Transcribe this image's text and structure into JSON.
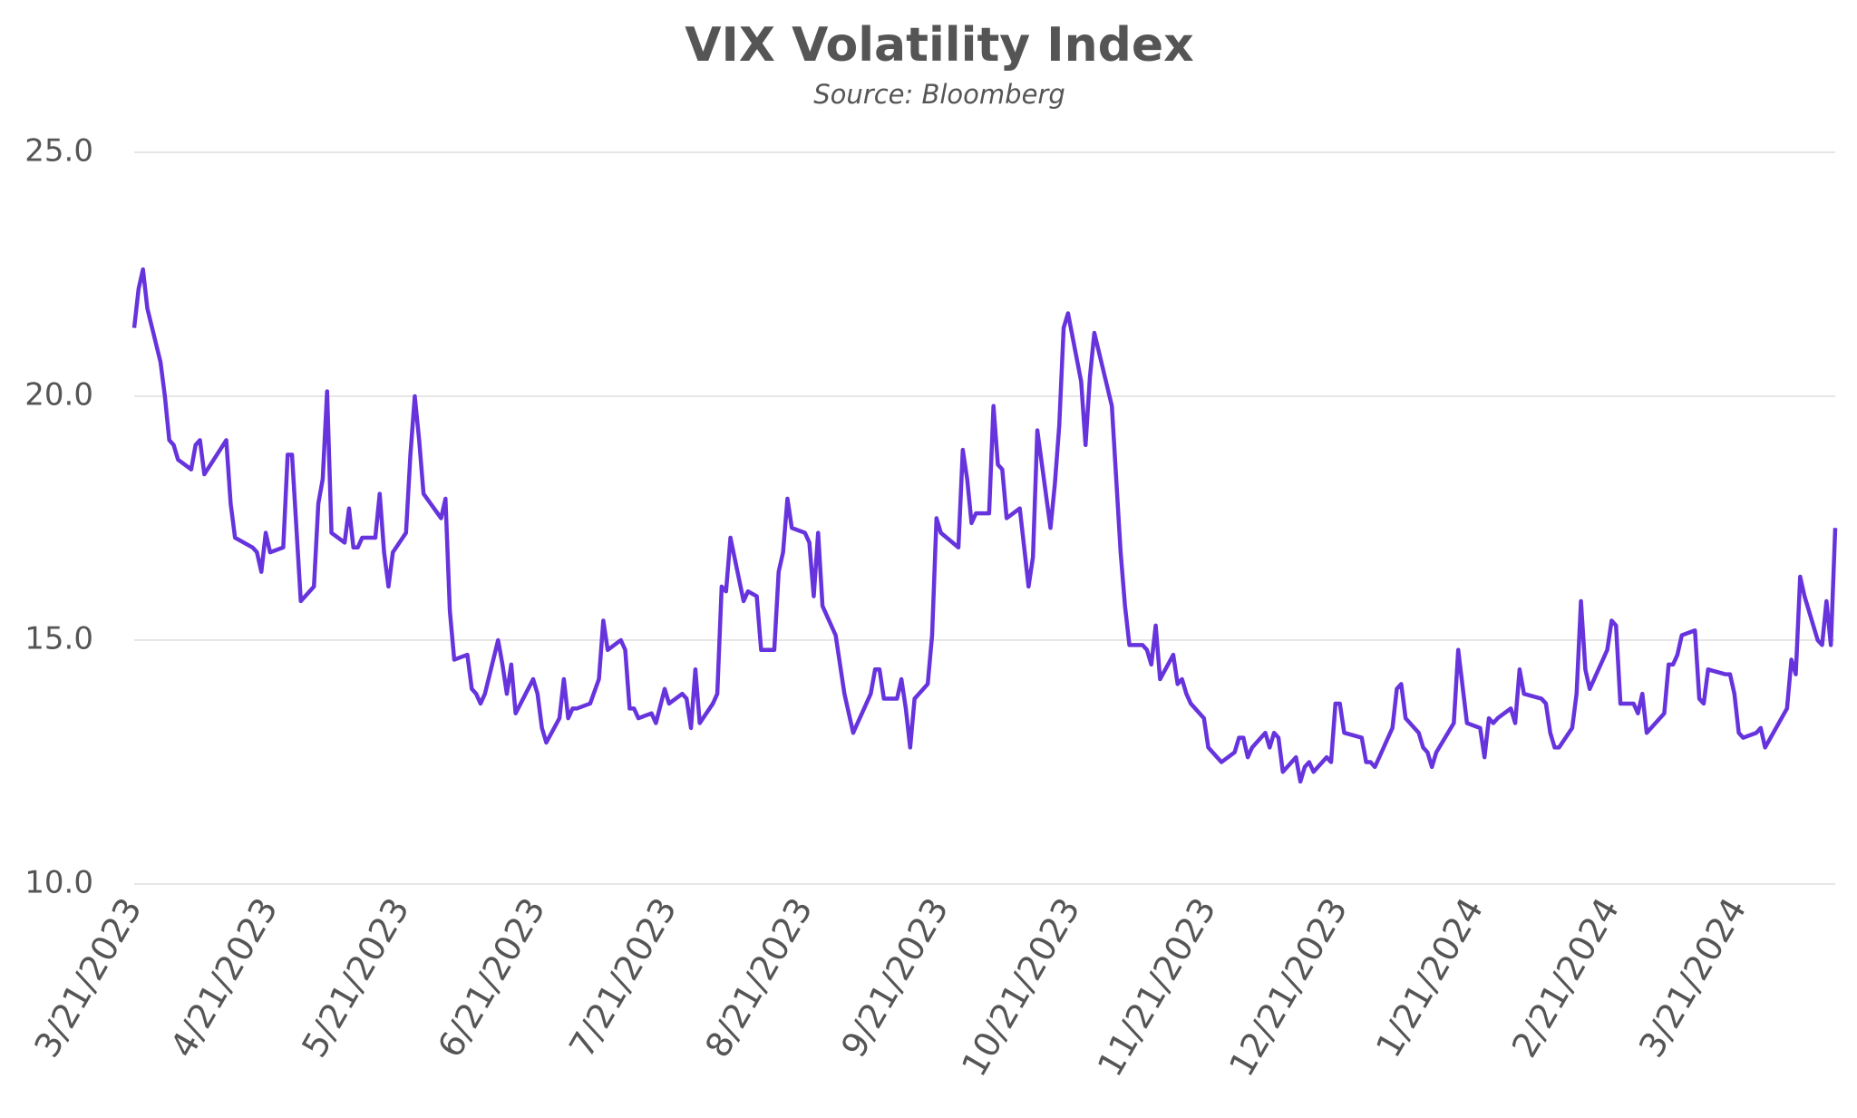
{
  "chart_data": {
    "type": "line",
    "title": "VIX Volatility Index",
    "subtitle": "Source: Bloomberg",
    "x": [
      "3/21/2023",
      "3/22/2023",
      "3/23/2023",
      "3/24/2023",
      "3/27/2023",
      "3/28/2023",
      "3/29/2023",
      "3/30/2023",
      "3/31/2023",
      "4/3/2023",
      "4/4/2023",
      "4/5/2023",
      "4/6/2023",
      "4/11/2023",
      "4/12/2023",
      "4/13/2023",
      "4/17/2023",
      "4/18/2023",
      "4/19/2023",
      "4/20/2023",
      "4/21/2023",
      "4/24/2023",
      "4/25/2023",
      "4/26/2023",
      "4/28/2023",
      "5/1/2023",
      "5/2/2023",
      "5/3/2023",
      "5/4/2023",
      "5/5/2023",
      "5/8/2023",
      "5/9/2023",
      "5/10/2023",
      "5/11/2023",
      "5/12/2023",
      "5/15/2023",
      "5/16/2023",
      "5/17/2023",
      "5/18/2023",
      "5/19/2023",
      "5/22/2023",
      "5/23/2023",
      "5/24/2023",
      "5/25/2023",
      "5/26/2023",
      "5/30/2023",
      "5/31/2023",
      "6/1/2023",
      "6/2/2023",
      "6/5/2023",
      "6/6/2023",
      "6/7/2023",
      "6/8/2023",
      "6/9/2023",
      "6/12/2023",
      "6/13/2023",
      "6/14/2023",
      "6/15/2023",
      "6/16/2023",
      "6/20/2023",
      "6/21/2023",
      "6/22/2023",
      "6/23/2023",
      "6/26/2023",
      "6/27/2023",
      "6/28/2023",
      "6/29/2023",
      "6/30/2023",
      "7/3/2023",
      "7/5/2023",
      "7/6/2023",
      "7/7/2023",
      "7/10/2023",
      "7/11/2023",
      "7/12/2023",
      "7/13/2023",
      "7/14/2023",
      "7/17/2023",
      "7/18/2023",
      "7/20/2023",
      "7/21/2023",
      "7/24/2023",
      "7/25/2023",
      "7/26/2023",
      "7/27/2023",
      "7/28/2023",
      "7/31/2023",
      "8/1/2023",
      "8/2/2023",
      "8/3/2023",
      "8/4/2023",
      "8/7/2023",
      "8/8/2023",
      "8/10/2023",
      "8/11/2023",
      "8/14/2023",
      "8/15/2023",
      "8/16/2023",
      "8/17/2023",
      "8/18/2023",
      "8/21/2023",
      "8/22/2023",
      "8/23/2023",
      "8/24/2023",
      "8/25/2023",
      "8/28/2023",
      "8/30/2023",
      "9/1/2023",
      "9/5/2023",
      "9/6/2023",
      "9/7/2023",
      "9/8/2023",
      "9/11/2023",
      "9/12/2023",
      "9/13/2023",
      "9/14/2023",
      "9/15/2023",
      "9/18/2023",
      "9/19/2023",
      "9/20/2023",
      "9/21/2023",
      "9/25/2023",
      "9/26/2023",
      "9/27/2023",
      "9/28/2023",
      "9/29/2023",
      "10/2/2023",
      "10/3/2023",
      "10/4/2023",
      "10/5/2023",
      "10/6/2023",
      "10/9/2023",
      "10/10/2023",
      "10/11/2023",
      "10/12/2023",
      "10/13/2023",
      "10/16/2023",
      "10/17/2023",
      "10/18/2023",
      "10/19/2023",
      "10/20/2023",
      "10/23/2023",
      "10/24/2023",
      "10/25/2023",
      "10/26/2023",
      "10/30/2023",
      "10/31/2023",
      "11/1/2023",
      "11/2/2023",
      "11/3/2023",
      "11/6/2023",
      "11/7/2023",
      "11/8/2023",
      "11/9/2023",
      "11/10/2023",
      "11/13/2023",
      "11/14/2023",
      "11/15/2023",
      "11/16/2023",
      "11/17/2023",
      "11/20/2023",
      "11/21/2023",
      "11/22/2023",
      "11/24/2023",
      "11/27/2023",
      "11/28/2023",
      "11/29/2023",
      "11/30/2023",
      "12/1/2023",
      "12/4/2023",
      "12/5/2023",
      "12/6/2023",
      "12/7/2023",
      "12/8/2023",
      "12/11/2023",
      "12/12/2023",
      "12/13/2023",
      "12/14/2023",
      "12/15/2023",
      "12/18/2023",
      "12/19/2023",
      "12/20/2023",
      "12/21/2023",
      "12/22/2023",
      "12/26/2023",
      "12/27/2023",
      "12/28/2023",
      "12/29/2023",
      "1/2/2024",
      "1/3/2024",
      "1/4/2024",
      "1/5/2024",
      "1/8/2024",
      "1/9/2024",
      "1/10/2024",
      "1/11/2024",
      "1/12/2024",
      "1/16/2024",
      "1/17/2024",
      "1/19/2024",
      "1/22/2024",
      "1/23/2024",
      "1/24/2024",
      "1/25/2024",
      "1/26/2024",
      "1/29/2024",
      "1/30/2024",
      "1/31/2024",
      "2/1/2024",
      "2/5/2024",
      "2/6/2024",
      "2/7/2024",
      "2/8/2024",
      "2/9/2024",
      "2/12/2024",
      "2/13/2024",
      "2/14/2024",
      "2/15/2024",
      "2/16/2024",
      "2/20/2024",
      "2/21/2024",
      "2/22/2024",
      "2/23/2024",
      "2/26/2024",
      "2/27/2024",
      "2/28/2024",
      "2/29/2024",
      "3/4/2024",
      "3/5/2024",
      "3/6/2024",
      "3/7/2024",
      "3/8/2024",
      "3/11/2024",
      "3/12/2024",
      "3/13/2024",
      "3/14/2024",
      "3/18/2024",
      "3/19/2024",
      "3/20/2024",
      "3/21/2024",
      "3/22/2024",
      "3/25/2024",
      "3/26/2024",
      "3/27/2024",
      "4/1/2024",
      "4/2/2024",
      "4/3/2024",
      "4/4/2024",
      "4/5/2024",
      "4/8/2024",
      "4/9/2024",
      "4/10/2024",
      "4/11/2024",
      "4/12/2024"
    ],
    "series": [
      {
        "color": "#6633dd",
        "values": [
          21.4,
          22.2,
          22.6,
          21.8,
          20.7,
          20.0,
          19.1,
          19.0,
          18.7,
          18.5,
          19.0,
          19.1,
          18.4,
          19.1,
          17.8,
          17.1,
          16.9,
          16.8,
          16.4,
          17.2,
          16.8,
          16.9,
          18.8,
          18.8,
          15.8,
          16.1,
          17.8,
          18.3,
          20.1,
          17.2,
          17.0,
          17.7,
          16.9,
          16.9,
          17.1,
          17.1,
          18.0,
          16.8,
          16.1,
          16.8,
          17.2,
          18.8,
          20.0,
          19.1,
          18.0,
          17.5,
          17.9,
          15.6,
          14.6,
          14.7,
          14.0,
          13.9,
          13.7,
          13.9,
          15.0,
          14.5,
          13.9,
          14.5,
          13.5,
          14.2,
          13.9,
          13.2,
          12.9,
          13.4,
          14.2,
          13.4,
          13.6,
          13.6,
          13.7,
          14.2,
          15.4,
          14.8,
          15.0,
          14.8,
          13.6,
          13.6,
          13.4,
          13.5,
          13.3,
          14.0,
          13.7,
          13.9,
          13.8,
          13.2,
          14.4,
          13.3,
          13.7,
          13.9,
          16.1,
          16.0,
          17.1,
          15.8,
          16.0,
          15.9,
          14.8,
          14.8,
          16.4,
          16.8,
          17.9,
          17.3,
          17.2,
          17.0,
          15.9,
          17.2,
          15.7,
          15.1,
          13.9,
          13.1,
          13.9,
          14.4,
          14.4,
          13.8,
          13.8,
          14.2,
          13.6,
          12.8,
          13.8,
          14.1,
          15.1,
          17.5,
          17.2,
          16.9,
          18.9,
          18.3,
          17.4,
          17.6,
          17.6,
          19.8,
          18.6,
          18.5,
          17.5,
          17.7,
          16.9,
          16.1,
          16.7,
          19.3,
          17.3,
          18.2,
          19.4,
          21.4,
          21.7,
          20.3,
          19.0,
          20.4,
          21.3,
          19.8,
          18.3,
          16.8,
          15.7,
          14.9,
          14.9,
          14.8,
          14.5,
          15.3,
          14.2,
          14.7,
          14.1,
          14.2,
          13.9,
          13.7,
          13.4,
          12.8,
          12.7,
          12.5,
          12.7,
          13.0,
          13.0,
          12.6,
          12.8,
          13.1,
          12.8,
          13.1,
          13.0,
          12.3,
          12.6,
          12.1,
          12.4,
          12.5,
          12.3,
          12.6,
          12.5,
          13.7,
          13.7,
          13.1,
          13.0,
          12.5,
          12.5,
          12.4,
          13.2,
          14.0,
          14.1,
          13.4,
          13.1,
          12.8,
          12.7,
          12.4,
          12.7,
          13.3,
          14.8,
          13.3,
          13.2,
          12.6,
          13.4,
          13.3,
          13.4,
          13.6,
          13.3,
          14.4,
          13.9,
          13.8,
          13.7,
          13.1,
          12.8,
          12.8,
          13.2,
          13.9,
          15.8,
          14.4,
          14.0,
          14.8,
          15.4,
          15.3,
          13.7,
          13.7,
          13.5,
          13.9,
          13.1,
          13.5,
          14.5,
          14.5,
          14.7,
          15.1,
          15.2,
          13.8,
          13.7,
          14.4,
          14.3,
          14.3,
          13.9,
          13.1,
          13.0,
          13.1,
          13.2,
          12.8,
          13.6,
          14.6,
          14.3,
          16.3,
          15.9,
          15.0,
          14.9,
          15.8,
          14.9,
          17.3
        ]
      }
    ],
    "xlim": [
      "3/21/2023",
      "4/12/2024"
    ],
    "xticks": [
      "3/21/2023",
      "4/21/2023",
      "5/21/2023",
      "6/21/2023",
      "7/21/2023",
      "8/21/2023",
      "9/21/2023",
      "10/21/2023",
      "11/21/2023",
      "12/21/2023",
      "1/21/2024",
      "2/21/2024",
      "3/21/2024"
    ],
    "ylim": [
      10,
      25
    ],
    "yticks": [
      {
        "value": 10,
        "label": "10.0"
      },
      {
        "value": 15,
        "label": "15.0"
      },
      {
        "value": 20,
        "label": "20.0"
      },
      {
        "value": 25,
        "label": "25.0"
      }
    ],
    "grid": true
  }
}
